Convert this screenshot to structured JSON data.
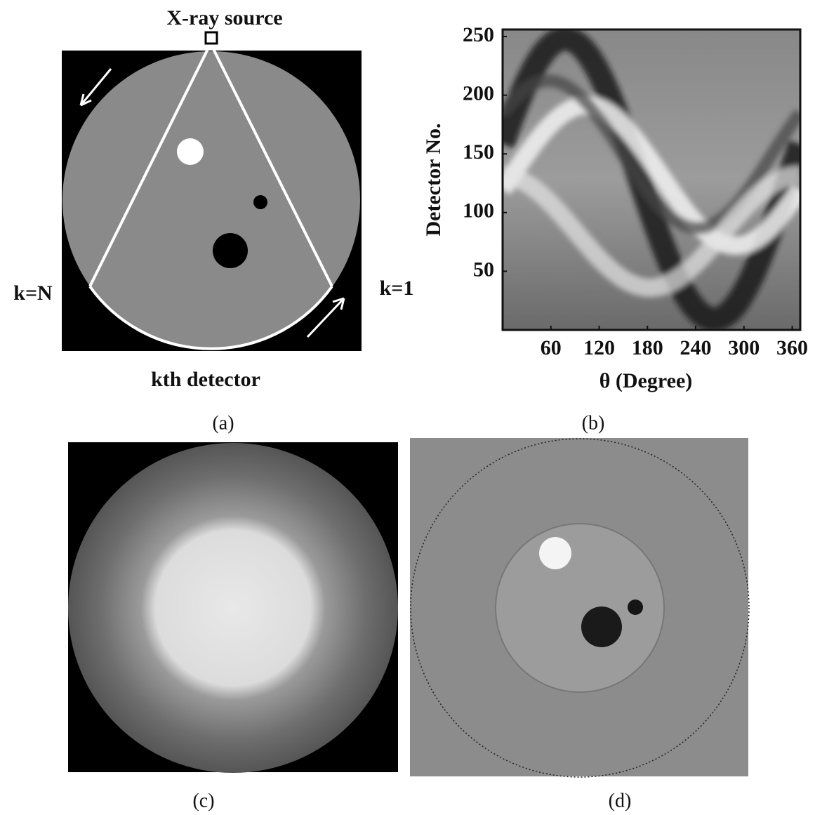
{
  "panels": {
    "a": {
      "source_label": "X-ray source",
      "left_label": "k=N",
      "right_label": "k=1",
      "detector_label": "kth detector",
      "caption": "(a)"
    },
    "b": {
      "xlabel": "θ (Degree)",
      "ylabel": "Detector No.",
      "xlim": [
        0,
        370
      ],
      "ylim": [
        0,
        256
      ],
      "xticks": [
        60,
        120,
        180,
        240,
        300,
        360
      ],
      "yticks": [
        50,
        100,
        150,
        200,
        250
      ],
      "caption": "(b)"
    },
    "c": {
      "caption": "(c)"
    },
    "d": {
      "caption": "(d)"
    }
  }
}
